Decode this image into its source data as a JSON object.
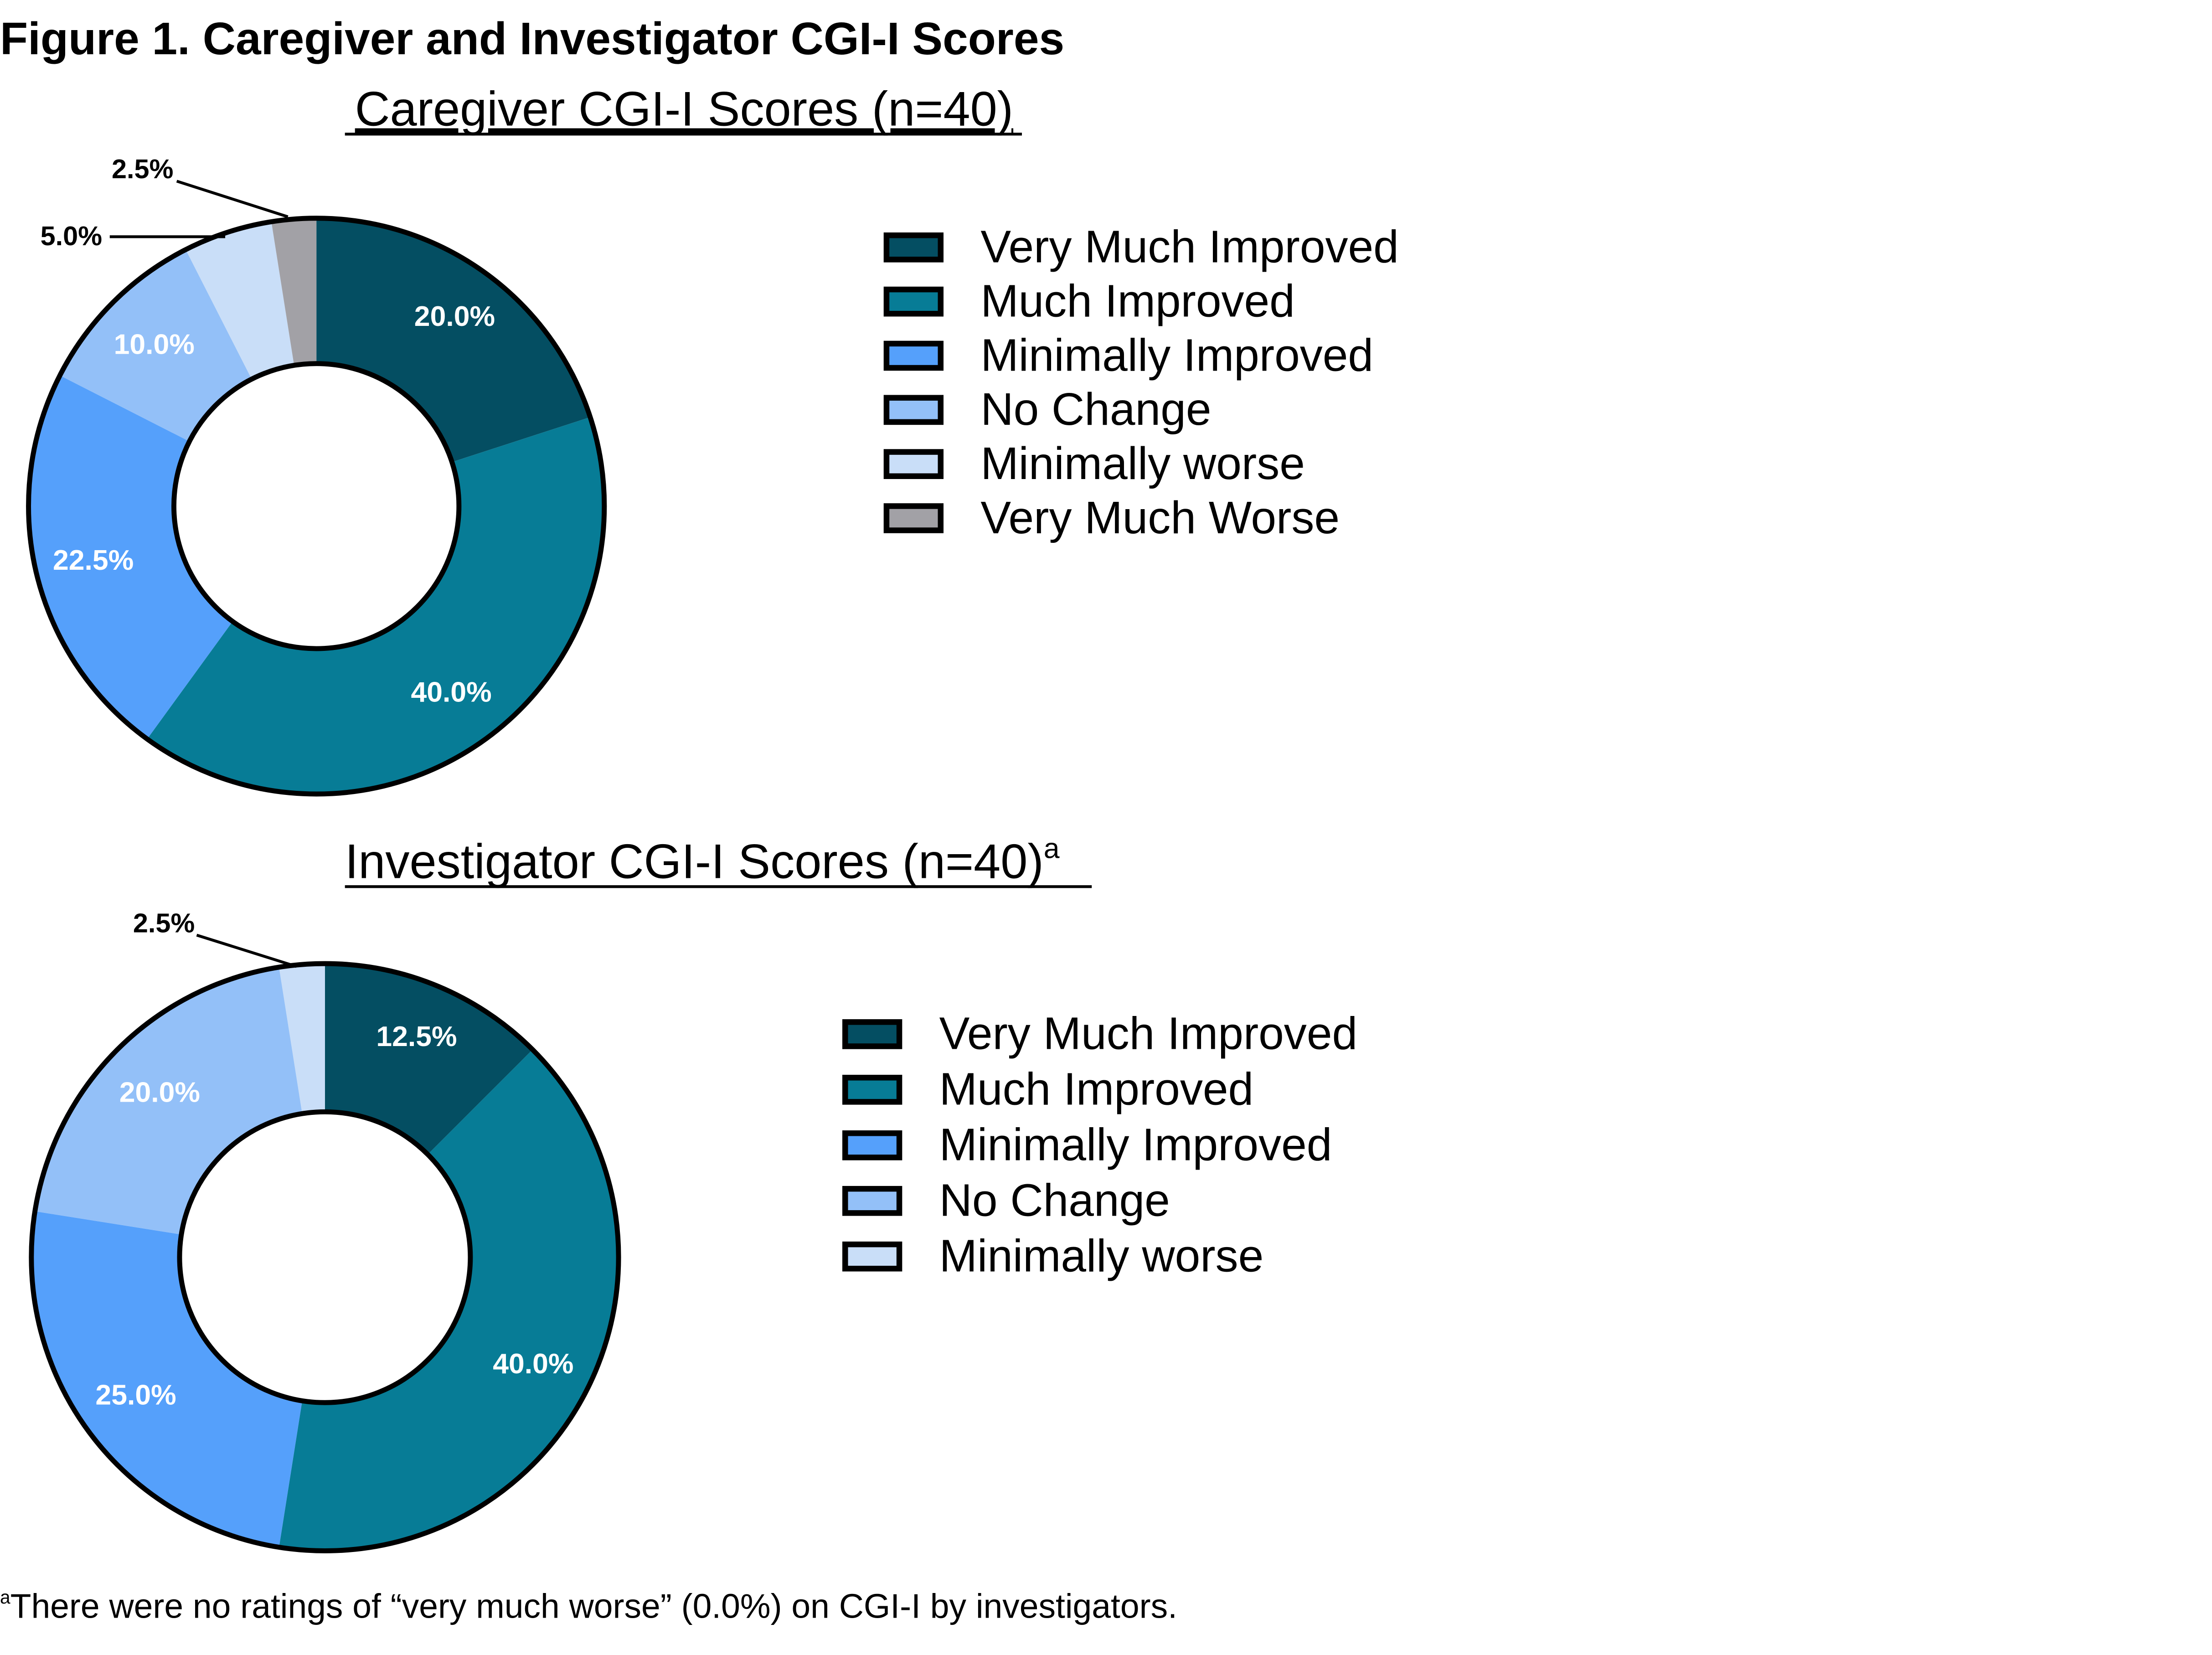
{
  "figure_title": "Figure 1. Caregiver and Investigator CGI-I Scores",
  "footnote_marker": "a",
  "footnote": "There were no ratings of “very much worse” (0.0%) on CGI-I by investigators.",
  "colors": {
    "Very Much Improved": "#044e62",
    "Much Improved": "#077c96",
    "Minimally Improved": "#55a0fb",
    "No Change": "#93c0f8",
    "Minimally worse": "#c9def8",
    "Very Much Worse": "#a2a1a6"
  },
  "chart_data": [
    {
      "type": "pie",
      "title": "Caregiver CGI-I Scores (n=40)",
      "title_superscript": "",
      "unit": "%",
      "categories": [
        "Very Much Improved",
        "Much Improved",
        "Minimally Improved",
        "No Change",
        "Minimally worse",
        "Very Much Worse"
      ],
      "values": [
        20.0,
        40.0,
        22.5,
        10.0,
        5.0,
        2.5
      ],
      "labels": [
        "20.0%",
        "40.0%",
        "22.5%",
        "10.0%",
        "5.0%",
        "2.5%"
      ],
      "legend": [
        "Very Much Improved",
        "Much Improved",
        "Minimally Improved",
        "No Change",
        "Minimally worse",
        "Very Much Worse"
      ],
      "legend_position": "right"
    },
    {
      "type": "pie",
      "title": "Investigator CGI-I Scores (n=40)",
      "title_superscript": "a",
      "unit": "%",
      "categories": [
        "Very Much Improved",
        "Much Improved",
        "Minimally Improved",
        "No Change",
        "Minimally worse"
      ],
      "values": [
        12.5,
        40.0,
        25.0,
        20.0,
        2.5
      ],
      "labels": [
        "12.5%",
        "40.0%",
        "25.0%",
        "20.0%",
        "2.5%"
      ],
      "legend": [
        "Very Much Improved",
        "Much Improved",
        "Minimally Improved",
        "No Change",
        "Minimally worse"
      ],
      "legend_position": "right"
    }
  ]
}
